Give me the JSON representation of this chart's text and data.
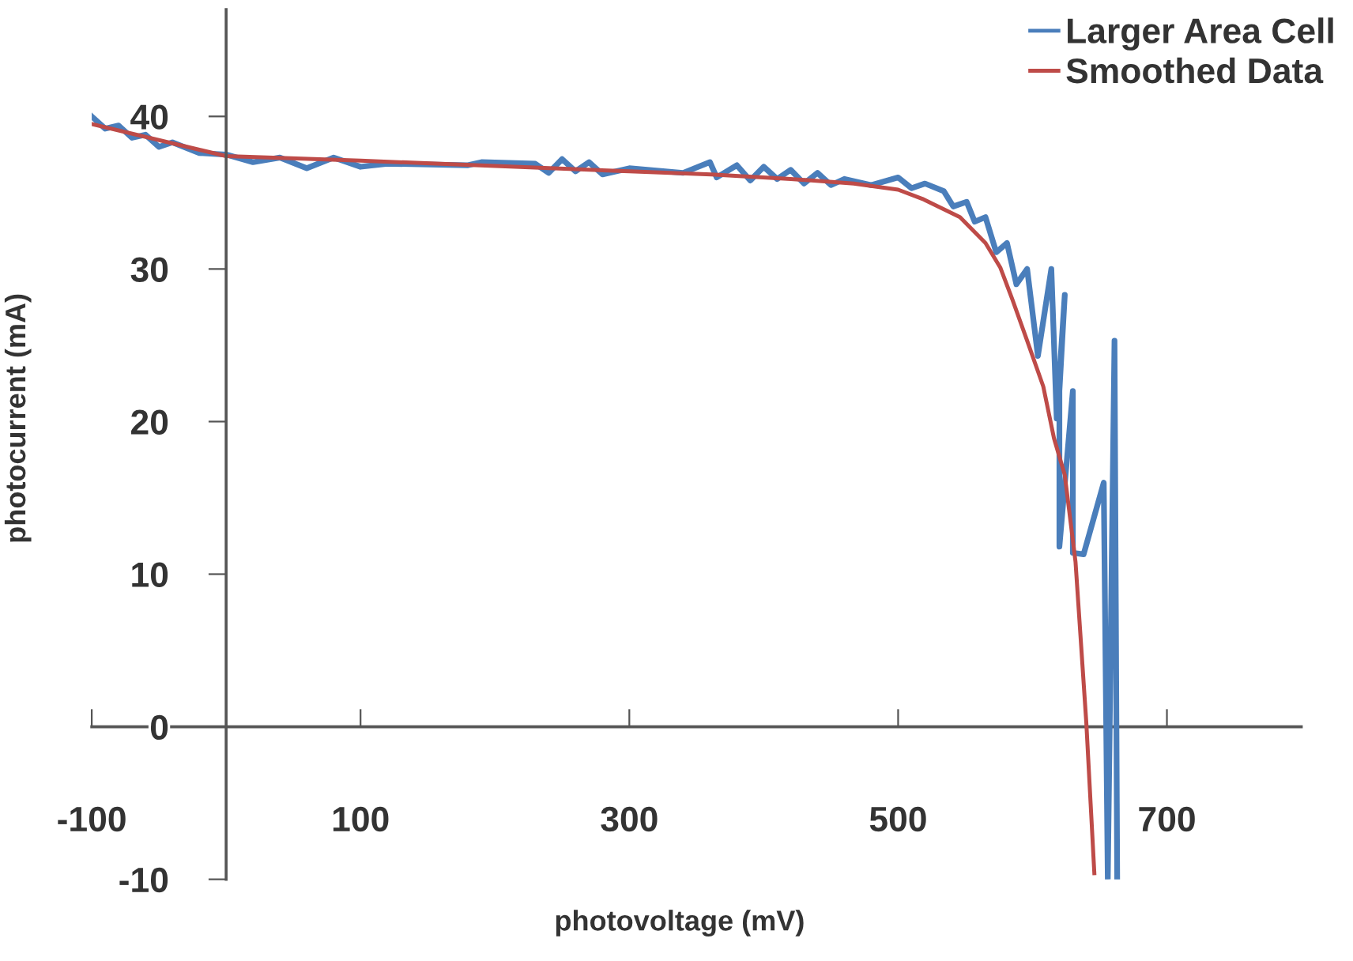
{
  "chart_data": {
    "type": "line",
    "xlabel": "photovoltage (mV)",
    "ylabel": "photocurrent (mA)",
    "xlim": [
      -100,
      800
    ],
    "ylim": [
      -10,
      47
    ],
    "xticks": [
      -100,
      100,
      300,
      500,
      700
    ],
    "yticks": [
      -10,
      0,
      10,
      20,
      30,
      40
    ],
    "grid": false,
    "legend": "top right",
    "marker": "none",
    "line_style": "solid",
    "series": [
      {
        "name": "Larger Area Cell",
        "color": "#4a7ebb",
        "x": [
          -100,
          -90,
          -80,
          -70,
          -60,
          -50,
          -40,
          -20,
          0,
          20,
          40,
          60,
          80,
          100,
          120,
          180,
          190,
          230,
          240,
          250,
          260,
          270,
          280,
          300,
          340,
          360,
          365,
          380,
          390,
          400,
          410,
          420,
          430,
          440,
          450,
          460,
          480,
          500,
          510,
          520,
          534,
          541,
          551,
          557,
          565,
          573,
          581,
          588,
          596,
          604,
          614,
          618,
          624,
          620,
          620,
          630,
          630,
          638,
          653,
          656,
          661,
          663
        ],
        "values": [
          40,
          39.2,
          39.4,
          38.6,
          38.8,
          38,
          38.3,
          37.6,
          37.5,
          37,
          37.3,
          36.6,
          37.3,
          36.7,
          36.9,
          36.8,
          37,
          36.9,
          36.3,
          37.2,
          36.4,
          37,
          36.2,
          36.6,
          36.3,
          37,
          36,
          36.8,
          35.8,
          36.7,
          35.9,
          36.5,
          35.6,
          36.3,
          35.5,
          35.9,
          35.5,
          36,
          35.3,
          35.6,
          35.1,
          34.1,
          34.4,
          33.1,
          33.4,
          31.1,
          31.7,
          29,
          30,
          24.3,
          30,
          20.2,
          28.3,
          22,
          11.8,
          22,
          11.4,
          11.3,
          16,
          -10,
          25.3,
          -10
        ]
      },
      {
        "name": "Smoothed Data",
        "color": "#be4b48",
        "x": [
          -100,
          0,
          100,
          300,
          361,
          420,
          467,
          500,
          518,
          546,
          565,
          576,
          585,
          596,
          608,
          616,
          624,
          632,
          640,
          646
        ],
        "values": [
          39.5,
          37.4,
          37.1,
          36.4,
          36.2,
          35.9,
          35.6,
          35.2,
          34.6,
          33.4,
          31.7,
          30.1,
          28,
          25.3,
          22.3,
          18.9,
          16.5,
          10.8,
          0.3,
          -9.6
        ]
      }
    ]
  }
}
